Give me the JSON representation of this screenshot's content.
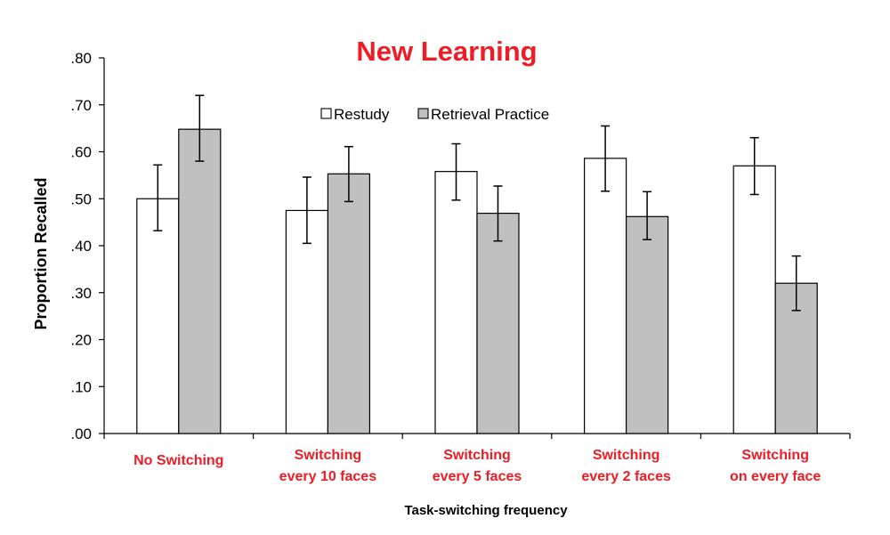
{
  "chart_data": {
    "type": "bar",
    "title": "New Learning",
    "xlabel": "Task-switching frequency",
    "ylabel": "Proportion Recalled",
    "ylim": [
      0,
      0.8
    ],
    "yticks": [
      {
        "value": 0.0,
        "label": ".00"
      },
      {
        "value": 0.1,
        "label": ".10"
      },
      {
        "value": 0.2,
        "label": ".20"
      },
      {
        "value": 0.3,
        "label": ".30"
      },
      {
        "value": 0.4,
        "label": ".40"
      },
      {
        "value": 0.5,
        "label": ".50"
      },
      {
        "value": 0.6,
        "label": ".60"
      },
      {
        "value": 0.7,
        "label": ".70"
      },
      {
        "value": 0.8,
        "label": ".80"
      }
    ],
    "categories": [
      [
        "No Switching"
      ],
      [
        "Switching",
        "every 10 faces"
      ],
      [
        "Switching",
        "every 5 faces"
      ],
      [
        "Switching",
        "every 2 faces"
      ],
      [
        "Switching",
        "on every face"
      ]
    ],
    "series": [
      {
        "name": "Restudy",
        "color": "#ffffff",
        "values": [
          0.5,
          0.475,
          0.558,
          0.586,
          0.57
        ],
        "err_low": [
          0.432,
          0.405,
          0.497,
          0.516,
          0.509
        ],
        "err_high": [
          0.572,
          0.546,
          0.617,
          0.655,
          0.63
        ]
      },
      {
        "name": "Retrieval Practice",
        "color": "#c0c0c0",
        "values": [
          0.648,
          0.553,
          0.469,
          0.462,
          0.32
        ],
        "err_low": [
          0.58,
          0.494,
          0.41,
          0.413,
          0.262
        ],
        "err_high": [
          0.72,
          0.611,
          0.527,
          0.515,
          0.378
        ]
      }
    ],
    "grid": false,
    "legend_position": "top-center",
    "title_color": "#ee1c25",
    "category_label_color": "#ee1c25"
  }
}
